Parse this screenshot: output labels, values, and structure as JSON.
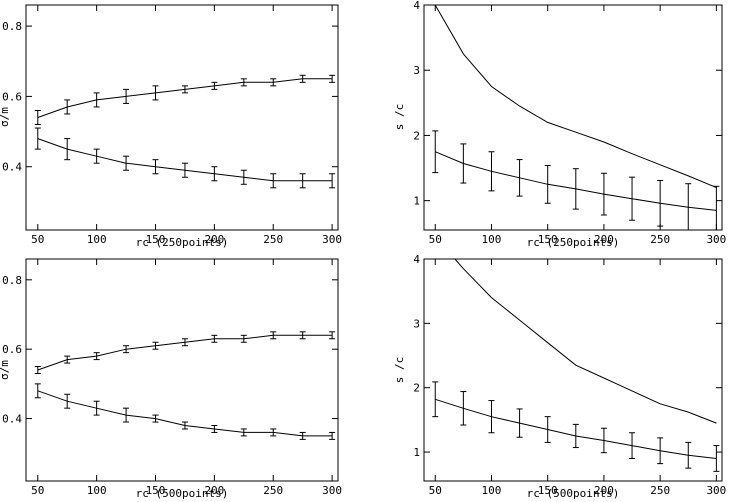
{
  "chart_data": [
    {
      "type": "line",
      "xlabel": "rc (250points)",
      "ylabel": "σ/m",
      "xlim": [
        40,
        305
      ],
      "ylim": [
        0.22,
        0.86
      ],
      "xticks": [
        50,
        100,
        150,
        200,
        250,
        300
      ],
      "yticks": [
        0.4,
        0.6,
        0.8
      ],
      "ytick_labels": [
        "0.4",
        "0.6",
        "0.8"
      ],
      "series": [
        {
          "x": [
            50,
            75,
            100,
            125,
            150,
            175,
            200,
            225,
            250,
            275,
            300
          ],
          "y": [
            0.54,
            0.57,
            0.59,
            0.6,
            0.61,
            0.62,
            0.63,
            0.64,
            0.64,
            0.65,
            0.65
          ],
          "err": [
            0.02,
            0.02,
            0.02,
            0.02,
            0.02,
            0.01,
            0.01,
            0.01,
            0.01,
            0.01,
            0.01
          ]
        },
        {
          "x": [
            50,
            75,
            100,
            125,
            150,
            175,
            200,
            225,
            250,
            275,
            300
          ],
          "y": [
            0.48,
            0.45,
            0.43,
            0.41,
            0.4,
            0.39,
            0.38,
            0.37,
            0.36,
            0.36,
            0.36
          ],
          "err": [
            0.03,
            0.03,
            0.02,
            0.02,
            0.02,
            0.02,
            0.02,
            0.02,
            0.02,
            0.02,
            0.02
          ]
        }
      ]
    },
    {
      "type": "line",
      "xlabel": "rc (250points)",
      "ylabel": "s /c",
      "xlim": [
        40,
        305
      ],
      "ylim": [
        0.55,
        4.0
      ],
      "xticks": [
        50,
        100,
        150,
        200,
        250,
        300
      ],
      "yticks": [
        1,
        2,
        3,
        4
      ],
      "ytick_labels": [
        "1",
        "2",
        "3",
        "4"
      ],
      "series": [
        {
          "x": [
            50,
            75,
            100,
            125,
            150,
            175,
            200,
            225,
            250,
            275,
            300
          ],
          "y": [
            4.0,
            3.25,
            2.75,
            2.45,
            2.2,
            2.05,
            1.9,
            1.72,
            1.55,
            1.38,
            1.2
          ]
        },
        {
          "x": [
            50,
            75,
            100,
            125,
            150,
            175,
            200,
            225,
            250,
            275,
            300
          ],
          "y": [
            1.75,
            1.57,
            1.45,
            1.35,
            1.25,
            1.18,
            1.1,
            1.03,
            0.96,
            0.9,
            0.85
          ],
          "err": [
            0.32,
            0.3,
            0.3,
            0.28,
            0.29,
            0.31,
            0.32,
            0.33,
            0.35,
            0.36,
            0.37
          ]
        }
      ]
    },
    {
      "type": "line",
      "xlabel": "rc (500points)",
      "ylabel": "σ/m",
      "xlim": [
        40,
        305
      ],
      "ylim": [
        0.22,
        0.86
      ],
      "xticks": [
        50,
        100,
        150,
        200,
        250,
        300
      ],
      "yticks": [
        0.4,
        0.6,
        0.8
      ],
      "ytick_labels": [
        "0.4",
        "0.6",
        "0.8"
      ],
      "series": [
        {
          "x": [
            50,
            75,
            100,
            125,
            150,
            175,
            200,
            225,
            250,
            275,
            300
          ],
          "y": [
            0.54,
            0.57,
            0.58,
            0.6,
            0.61,
            0.62,
            0.63,
            0.63,
            0.64,
            0.64,
            0.64
          ],
          "err": [
            0.01,
            0.01,
            0.01,
            0.01,
            0.01,
            0.01,
            0.01,
            0.01,
            0.01,
            0.01,
            0.01
          ]
        },
        {
          "x": [
            50,
            75,
            100,
            125,
            150,
            175,
            200,
            225,
            250,
            275,
            300
          ],
          "y": [
            0.48,
            0.45,
            0.43,
            0.41,
            0.4,
            0.38,
            0.37,
            0.36,
            0.36,
            0.35,
            0.35
          ],
          "err": [
            0.02,
            0.02,
            0.02,
            0.02,
            0.01,
            0.01,
            0.01,
            0.01,
            0.01,
            0.01,
            0.01
          ]
        }
      ]
    },
    {
      "type": "line",
      "xlabel": "rc (500points)",
      "ylabel": "s /c",
      "xlim": [
        40,
        305
      ],
      "ylim": [
        0.55,
        4.0
      ],
      "xticks": [
        50,
        100,
        150,
        200,
        250,
        300
      ],
      "yticks": [
        1,
        2,
        3,
        4
      ],
      "ytick_labels": [
        "1",
        "2",
        "3",
        "4"
      ],
      "series": [
        {
          "x": [
            50,
            75,
            100,
            125,
            150,
            175,
            200,
            225,
            250,
            275,
            300
          ],
          "y": [
            4.35,
            3.85,
            3.4,
            3.05,
            2.7,
            2.35,
            2.15,
            1.95,
            1.75,
            1.62,
            1.45
          ]
        },
        {
          "x": [
            50,
            75,
            100,
            125,
            150,
            175,
            200,
            225,
            250,
            275,
            300
          ],
          "y": [
            1.82,
            1.68,
            1.55,
            1.45,
            1.35,
            1.25,
            1.18,
            1.1,
            1.02,
            0.95,
            0.9
          ],
          "err": [
            0.27,
            0.26,
            0.25,
            0.22,
            0.2,
            0.18,
            0.19,
            0.2,
            0.2,
            0.2,
            0.2
          ]
        }
      ]
    }
  ]
}
